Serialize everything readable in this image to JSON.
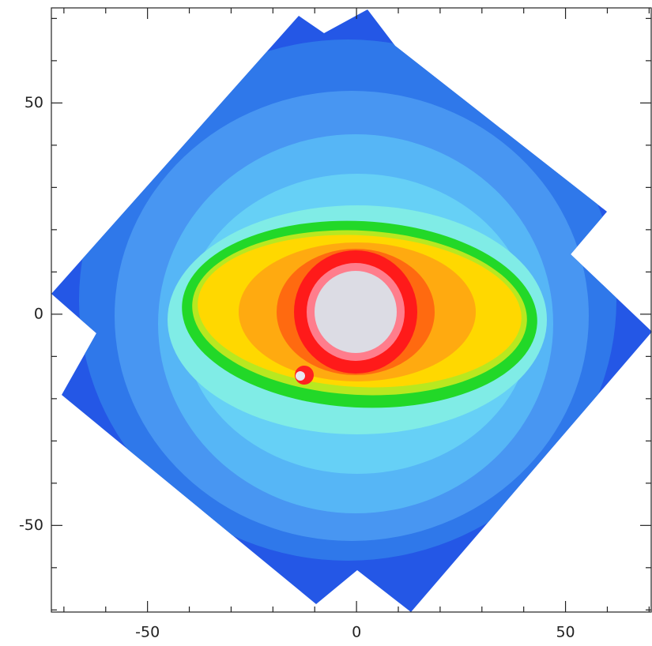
{
  "chart_data": {
    "type": "image",
    "xlim": [
      -73,
      70.5
    ],
    "ylim": [
      -70.5,
      72.5
    ],
    "xticks": [
      -50,
      0,
      50
    ],
    "yticks": [
      -50,
      0,
      50
    ],
    "xminorticks": [
      -70,
      -60,
      -40,
      -30,
      -20,
      -10,
      10,
      20,
      30,
      40,
      60,
      70
    ],
    "yminorticks": [
      -70,
      -60,
      -40,
      -30,
      -20,
      -10,
      10,
      20,
      30,
      40,
      60,
      70
    ]
  }
}
